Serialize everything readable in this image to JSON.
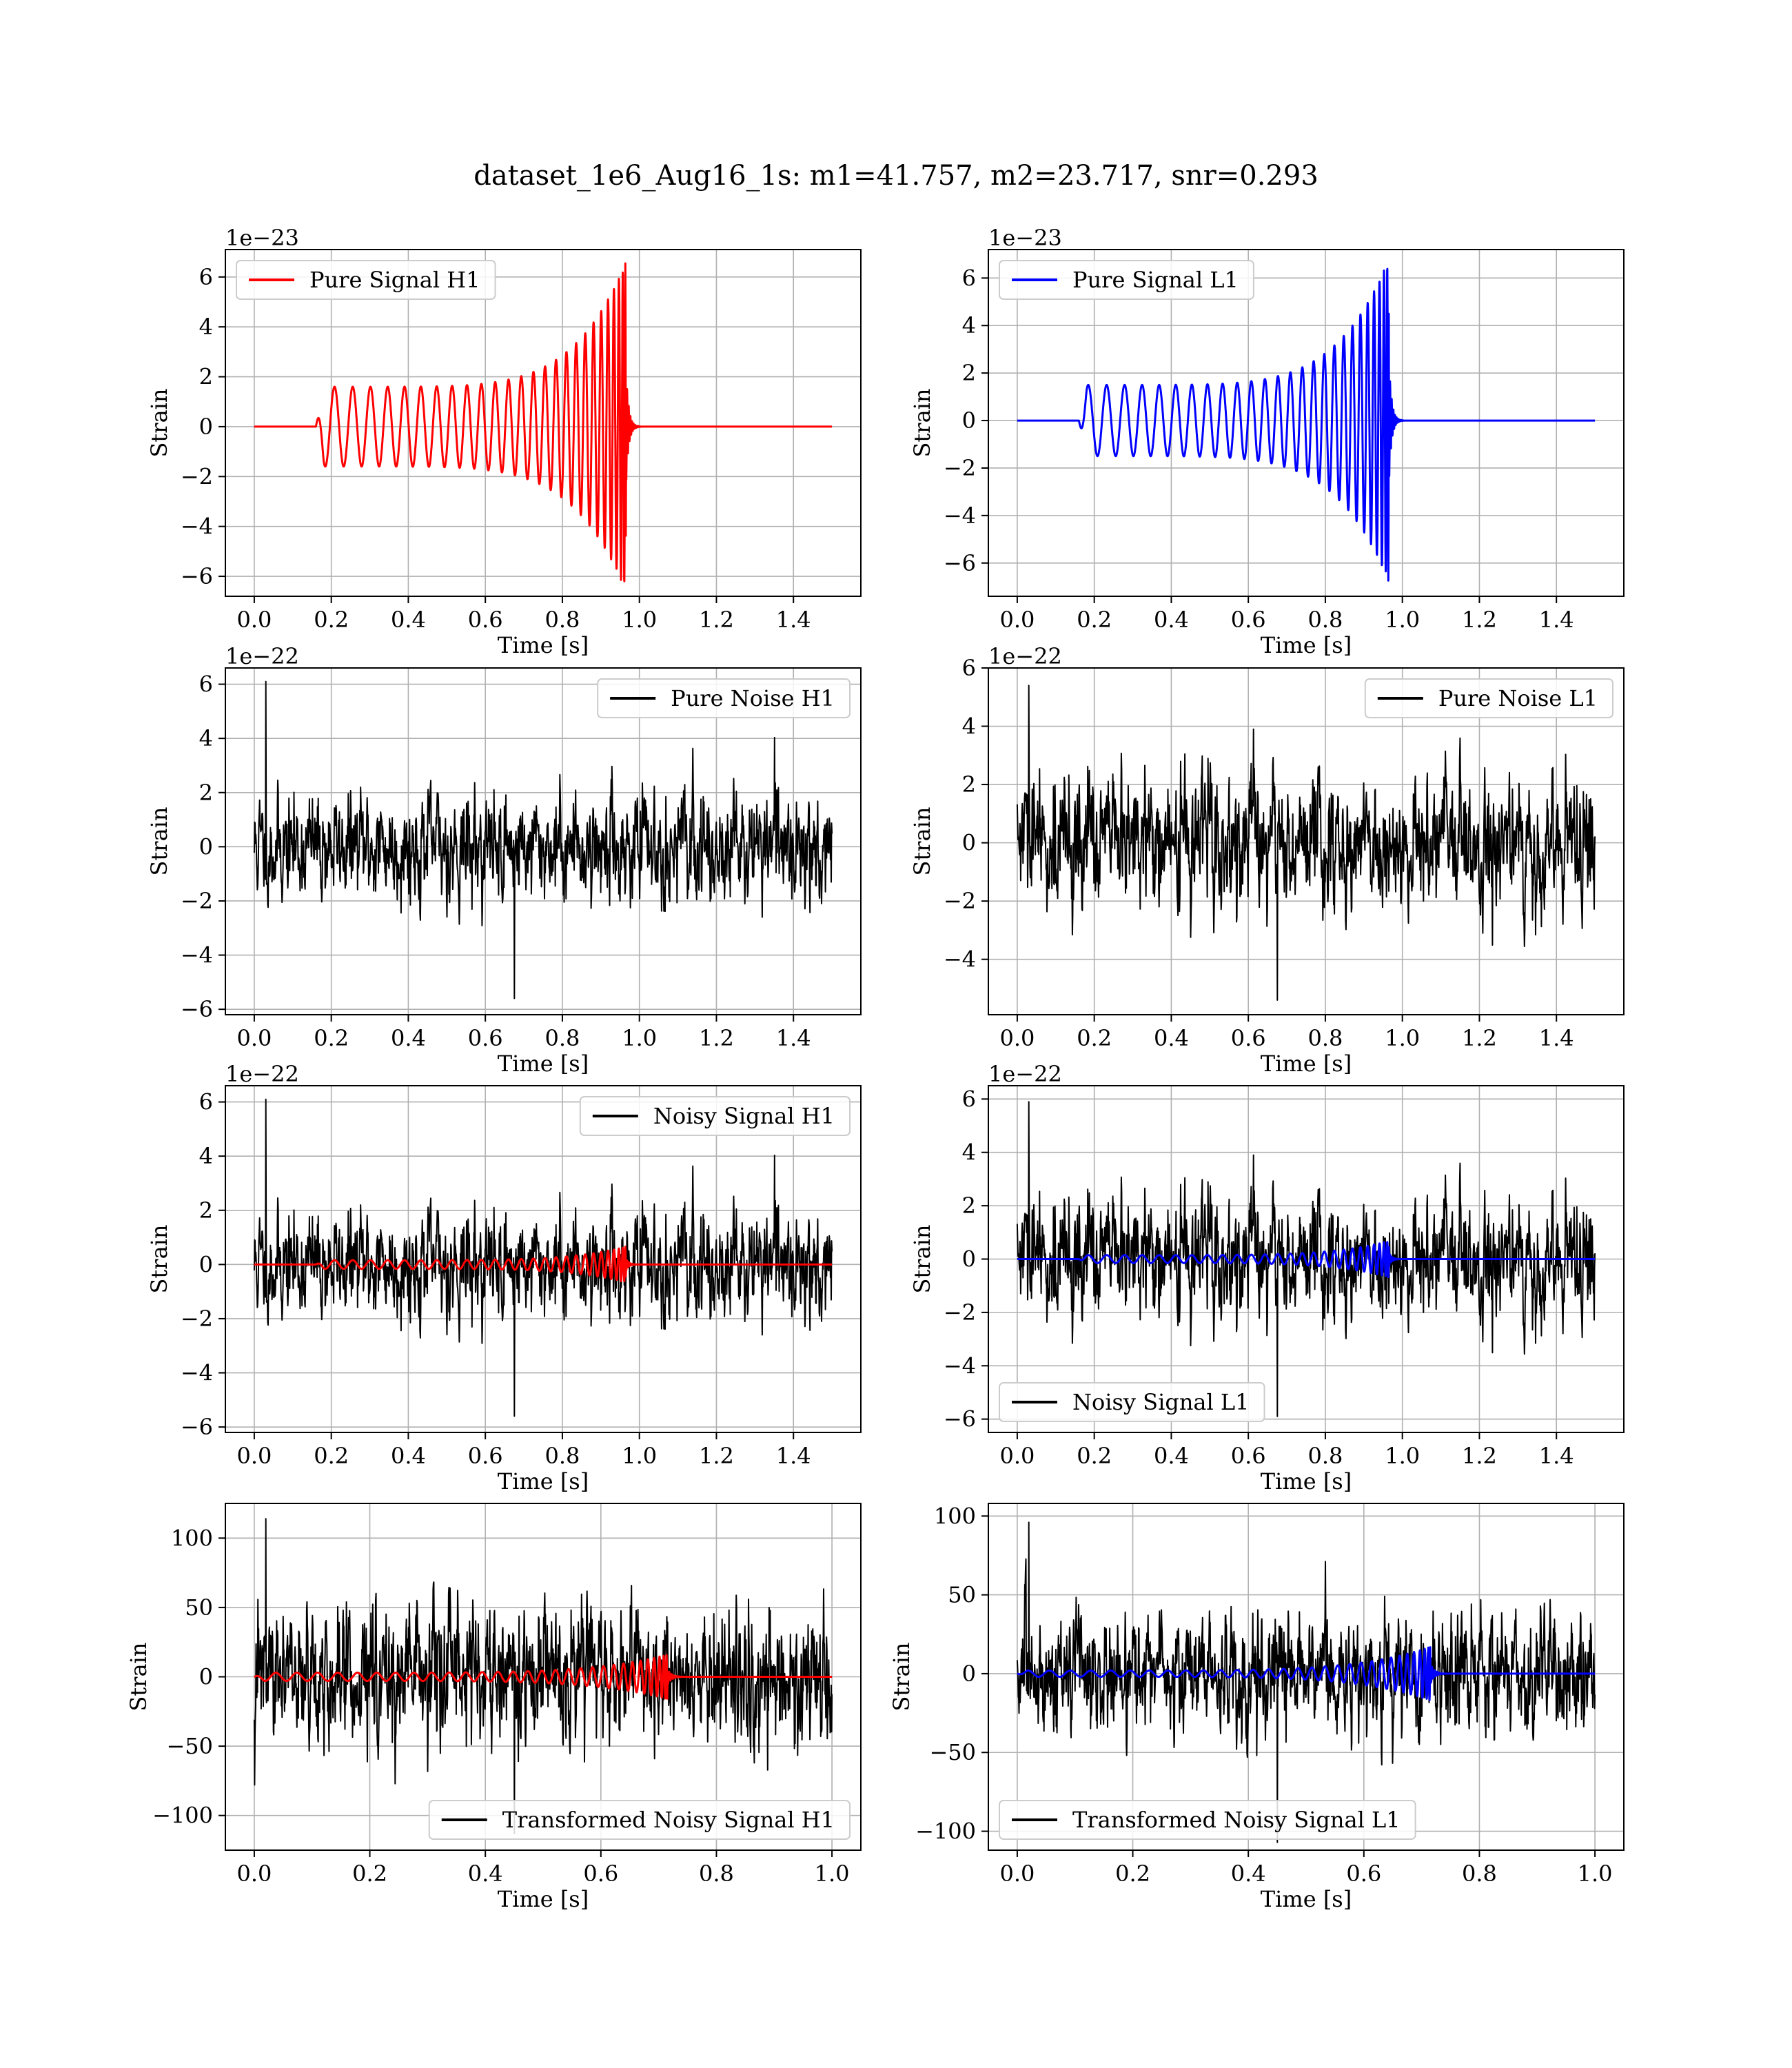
{
  "figure": {
    "suptitle": "dataset_1e6_Aug16_1s: m1=41.757, m2=23.717, snr=0.293"
  },
  "chart_data": [
    {
      "type": "line",
      "subplot": "row1-col1",
      "xlabel": "Time [s]",
      "ylabel": "Strain",
      "offset_text": "1e−23",
      "xlim": [
        -0.075,
        1.575
      ],
      "ylim": [
        -6.8,
        7.1
      ],
      "xticks": [
        0.0,
        0.2,
        0.4,
        0.6,
        0.8,
        1.0,
        1.2,
        1.4
      ],
      "xtick_labels": [
        "0.0",
        "0.2",
        "0.4",
        "0.6",
        "0.8",
        "1.0",
        "1.2",
        "1.4"
      ],
      "yticks": [
        -6,
        -4,
        -2,
        0,
        2,
        4,
        6
      ],
      "ytick_labels": [
        "−6",
        "−4",
        "−2",
        "0",
        "2",
        "4",
        "6"
      ],
      "grid": true,
      "legend": {
        "position": "upper-left",
        "entries": [
          {
            "label": "Pure Signal H1",
            "color": "#ff0000"
          }
        ]
      },
      "series": [
        {
          "name": "Pure Signal H1",
          "color": "#ff0000",
          "kind": "chirp",
          "line_width": 3,
          "x_range": [
            0.0,
            1.5
          ],
          "onset": 0.16,
          "merger": 0.965,
          "amp_start": 1.6,
          "amp_peak": 6.6,
          "amp_min": -6.2,
          "cycles": 26,
          "phase": 0.0
        }
      ]
    },
    {
      "type": "line",
      "subplot": "row1-col2",
      "xlabel": "Time [s]",
      "ylabel": "Strain",
      "offset_text": "1e−23",
      "xlim": [
        -0.075,
        1.575
      ],
      "ylim": [
        -7.4,
        7.2
      ],
      "xticks": [
        0.0,
        0.2,
        0.4,
        0.6,
        0.8,
        1.0,
        1.2,
        1.4
      ],
      "xtick_labels": [
        "0.0",
        "0.2",
        "0.4",
        "0.6",
        "0.8",
        "1.0",
        "1.2",
        "1.4"
      ],
      "yticks": [
        -6,
        -4,
        -2,
        0,
        2,
        4,
        6
      ],
      "ytick_labels": [
        "−6",
        "−4",
        "−2",
        "0",
        "2",
        "4",
        "6"
      ],
      "grid": true,
      "legend": {
        "position": "upper-left",
        "entries": [
          {
            "label": "Pure Signal L1",
            "color": "#0000ff"
          }
        ]
      },
      "series": [
        {
          "name": "Pure Signal L1",
          "color": "#0000ff",
          "kind": "chirp",
          "line_width": 3,
          "x_range": [
            0.0,
            1.5
          ],
          "onset": 0.16,
          "merger": 0.965,
          "amp_start": -1.5,
          "amp_peak": 6.5,
          "amp_min": -6.8,
          "cycles": 26,
          "phase": 3.14
        }
      ]
    },
    {
      "type": "line",
      "subplot": "row2-col1",
      "xlabel": "Time [s]",
      "ylabel": "Strain",
      "offset_text": "1e−22",
      "xlim": [
        -0.075,
        1.575
      ],
      "ylim": [
        -6.2,
        6.6
      ],
      "xticks": [
        0.0,
        0.2,
        0.4,
        0.6,
        0.8,
        1.0,
        1.2,
        1.4
      ],
      "xtick_labels": [
        "0.0",
        "0.2",
        "0.4",
        "0.6",
        "0.8",
        "1.0",
        "1.2",
        "1.4"
      ],
      "yticks": [
        -6,
        -4,
        -2,
        0,
        2,
        4,
        6
      ],
      "ytick_labels": [
        "−6",
        "−4",
        "−2",
        "0",
        "2",
        "4",
        "6"
      ],
      "grid": true,
      "legend": {
        "position": "upper-right",
        "entries": [
          {
            "label": "Pure Noise H1",
            "color": "#000000"
          }
        ]
      },
      "series": [
        {
          "name": "Pure Noise H1",
          "color": "#000000",
          "kind": "noise",
          "line_width": 2,
          "x_range": [
            0.0,
            1.5
          ],
          "samples": 1500,
          "sigma": 1.55,
          "max": 6.1,
          "min": -5.6,
          "seed": 11
        }
      ]
    },
    {
      "type": "line",
      "subplot": "row2-col2",
      "xlabel": "Time [s]",
      "ylabel": "Strain",
      "offset_text": "1e−22",
      "xlim": [
        -0.075,
        1.575
      ],
      "ylim": [
        -5.9,
        6.0
      ],
      "xticks": [
        0.0,
        0.2,
        0.4,
        0.6,
        0.8,
        1.0,
        1.2,
        1.4
      ],
      "xtick_labels": [
        "0.0",
        "0.2",
        "0.4",
        "0.6",
        "0.8",
        "1.0",
        "1.2",
        "1.4"
      ],
      "yticks": [
        -4,
        -2,
        0,
        2,
        4,
        6
      ],
      "ytick_labels": [
        "−4",
        "−2",
        "0",
        "2",
        "4",
        "6"
      ],
      "grid": true,
      "legend": {
        "position": "upper-right",
        "entries": [
          {
            "label": "Pure Noise L1",
            "color": "#000000"
          }
        ]
      },
      "series": [
        {
          "name": "Pure Noise L1",
          "color": "#000000",
          "kind": "noise",
          "line_width": 2,
          "x_range": [
            0.0,
            1.5
          ],
          "samples": 1500,
          "sigma": 1.5,
          "max": 5.4,
          "min": -5.4,
          "seed": 29
        }
      ]
    },
    {
      "type": "line",
      "subplot": "row3-col1",
      "xlabel": "Time [s]",
      "ylabel": "Strain",
      "offset_text": "1e−22",
      "xlim": [
        -0.075,
        1.575
      ],
      "ylim": [
        -6.2,
        6.6
      ],
      "xticks": [
        0.0,
        0.2,
        0.4,
        0.6,
        0.8,
        1.0,
        1.2,
        1.4
      ],
      "xtick_labels": [
        "0.0",
        "0.2",
        "0.4",
        "0.6",
        "0.8",
        "1.0",
        "1.2",
        "1.4"
      ],
      "yticks": [
        -6,
        -4,
        -2,
        0,
        2,
        4,
        6
      ],
      "ytick_labels": [
        "−6",
        "−4",
        "−2",
        "0",
        "2",
        "4",
        "6"
      ],
      "grid": true,
      "legend": {
        "position": "upper-right",
        "entries": [
          {
            "label": "Noisy Signal H1",
            "color": "#000000"
          }
        ]
      },
      "series": [
        {
          "name": "Noisy Signal H1",
          "color": "#000000",
          "kind": "noise",
          "line_width": 2,
          "x_range": [
            0.0,
            1.5
          ],
          "samples": 1500,
          "sigma": 1.55,
          "max": 6.1,
          "min": -5.6,
          "seed": 11
        },
        {
          "color": "#ff0000",
          "kind": "chirp",
          "line_width": 3,
          "x_range": [
            0.0,
            1.5
          ],
          "onset": 0.16,
          "merger": 0.965,
          "amp_start": 0.16,
          "amp_peak": 0.66,
          "amp_min": -0.62,
          "cycles": 26,
          "phase": 0.0
        }
      ]
    },
    {
      "type": "line",
      "subplot": "row3-col2",
      "xlabel": "Time [s]",
      "ylabel": "Strain",
      "offset_text": "1e−22",
      "xlim": [
        -0.075,
        1.575
      ],
      "ylim": [
        -6.5,
        6.5
      ],
      "xticks": [
        0.0,
        0.2,
        0.4,
        0.6,
        0.8,
        1.0,
        1.2,
        1.4
      ],
      "xtick_labels": [
        "0.0",
        "0.2",
        "0.4",
        "0.6",
        "0.8",
        "1.0",
        "1.2",
        "1.4"
      ],
      "yticks": [
        -6,
        -4,
        -2,
        0,
        2,
        4,
        6
      ],
      "ytick_labels": [
        "−6",
        "−4",
        "−2",
        "0",
        "2",
        "4",
        "6"
      ],
      "grid": true,
      "legend": {
        "position": "lower-left",
        "entries": [
          {
            "label": "Noisy Signal L1",
            "color": "#000000"
          }
        ]
      },
      "series": [
        {
          "name": "Noisy Signal L1",
          "color": "#000000",
          "kind": "noise",
          "line_width": 2,
          "x_range": [
            0.0,
            1.5
          ],
          "samples": 1500,
          "sigma": 1.5,
          "max": 5.9,
          "min": -5.9,
          "seed": 29
        },
        {
          "color": "#0000ff",
          "kind": "chirp",
          "line_width": 3,
          "x_range": [
            0.0,
            1.5
          ],
          "onset": 0.16,
          "merger": 0.965,
          "amp_start": -0.15,
          "amp_peak": 0.65,
          "amp_min": -0.68,
          "cycles": 26,
          "phase": 3.14
        }
      ]
    },
    {
      "type": "line",
      "subplot": "row4-col1",
      "xlabel": "Time [s]",
      "ylabel": "Strain",
      "offset_text": "",
      "xlim": [
        -0.05,
        1.05
      ],
      "ylim": [
        -125,
        125
      ],
      "xticks": [
        0.0,
        0.2,
        0.4,
        0.6,
        0.8,
        1.0
      ],
      "xtick_labels": [
        "0.0",
        "0.2",
        "0.4",
        "0.6",
        "0.8",
        "1.0"
      ],
      "yticks": [
        -100,
        -50,
        0,
        50,
        100
      ],
      "ytick_labels": [
        "−100",
        "−50",
        "0",
        "50",
        "100"
      ],
      "grid": true,
      "legend": {
        "position": "lower-right",
        "entries": [
          {
            "label": "Transformed Noisy Signal H1",
            "color": "#000000"
          }
        ]
      },
      "series": [
        {
          "name": "Transformed Noisy Signal H1",
          "color": "#000000",
          "kind": "noise",
          "line_width": 2,
          "x_range": [
            0.0,
            1.0
          ],
          "samples": 1600,
          "sigma": 30,
          "max": 114,
          "min": -113,
          "seed": 47
        },
        {
          "color": "#ff0000",
          "kind": "chirp",
          "line_width": 3,
          "x_range": [
            0.0,
            1.0
          ],
          "onset": 0.0,
          "merger": 0.715,
          "amp_start": 3.0,
          "amp_peak": 16.0,
          "amp_min": -15.0,
          "cycles": 30,
          "phase": 0.0
        }
      ]
    },
    {
      "type": "line",
      "subplot": "row4-col2",
      "xlabel": "Time [s]",
      "ylabel": "Strain",
      "offset_text": "",
      "xlim": [
        -0.05,
        1.05
      ],
      "ylim": [
        -112,
        108
      ],
      "xticks": [
        0.0,
        0.2,
        0.4,
        0.6,
        0.8,
        1.0
      ],
      "xtick_labels": [
        "0.0",
        "0.2",
        "0.4",
        "0.6",
        "0.8",
        "1.0"
      ],
      "yticks": [
        -100,
        -50,
        0,
        50,
        100
      ],
      "ytick_labels": [
        "−100",
        "−50",
        "0",
        "50",
        "100"
      ],
      "grid": true,
      "legend": {
        "position": "lower-left",
        "entries": [
          {
            "label": "Transformed Noisy Signal L1",
            "color": "#000000"
          }
        ]
      },
      "series": [
        {
          "name": "Transformed Noisy Signal L1",
          "color": "#000000",
          "kind": "noise",
          "line_width": 2,
          "x_range": [
            0.0,
            1.0
          ],
          "samples": 1600,
          "sigma": 28,
          "max": 96,
          "min": -107,
          "seed": 83
        },
        {
          "color": "#0000ff",
          "kind": "chirp",
          "line_width": 3,
          "x_range": [
            0.0,
            1.0
          ],
          "onset": 0.0,
          "merger": 0.715,
          "amp_start": 2.0,
          "amp_peak": 16.0,
          "amp_min": -17.0,
          "cycles": 30,
          "phase": 3.14
        }
      ]
    }
  ]
}
